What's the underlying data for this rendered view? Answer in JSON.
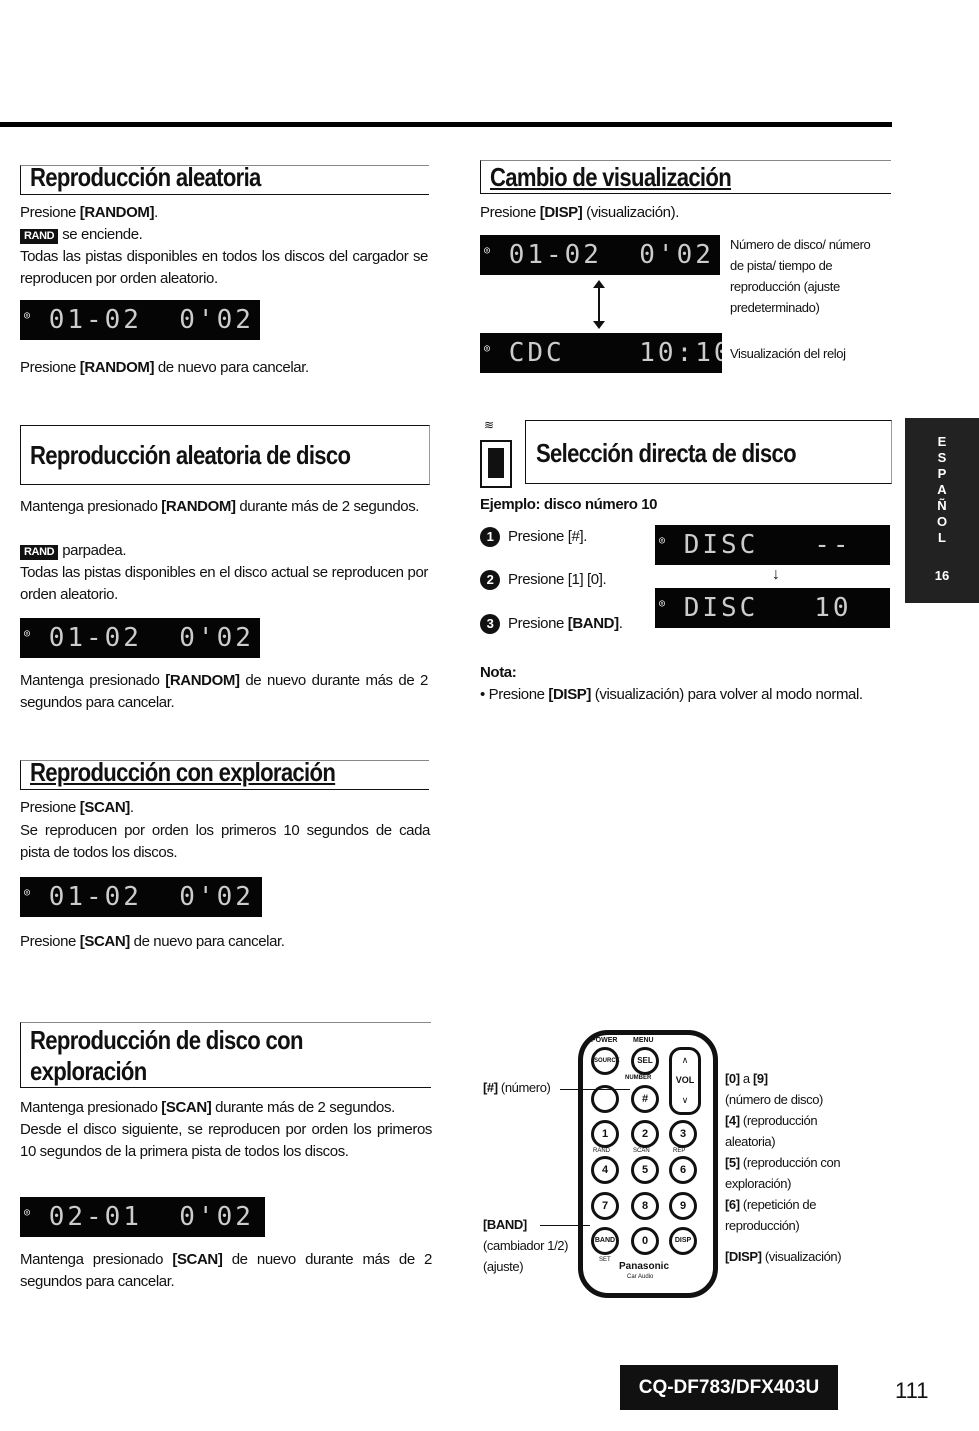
{
  "sections": {
    "random": {
      "title": "Reproducción aleatoria",
      "l1_pre": "Presione ",
      "l1_key": "[RANDOM]",
      "l1_post": ".",
      "badge": "RAND",
      "l2": "se enciende.",
      "l3": "Todas las pistas disponibles en todos los discos del cargador se reproducen por orden aleatorio.",
      "lcd": "01-02  0'02",
      "l4_pre": "Presione ",
      "l4_key": "[RANDOM]",
      "l4_post": " de nuevo para cancelar."
    },
    "random_disc": {
      "title": "Reproducción aleatoria de disco",
      "l1_pre": "Mantenga presionado ",
      "l1_key": "[RANDOM]",
      "l1_post": " durante más de 2 segundos.",
      "badge": "RAND",
      "l2": "parpadea.",
      "l3": "Todas las pistas disponibles en el disco actual se reproducen por orden aleatorio.",
      "lcd": "01-02  0'02",
      "l4_pre": "Mantenga presionado ",
      "l4_key": "[RANDOM]",
      "l4_post": " de nuevo durante más de 2 segundos para cancelar."
    },
    "scan": {
      "title": "Reproducción con exploración",
      "l1_pre": "Presione ",
      "l1_key": "[SCAN]",
      "l1_post": ".",
      "l2": "Se reproducen por orden los primeros 10 segundos de cada pista de todos los discos.",
      "lcd": "01-02  0'02",
      "l3_pre": "Presione ",
      "l3_key": "[SCAN]",
      "l3_post": " de nuevo para cancelar."
    },
    "disc_scan": {
      "title1": "Reproducción de disco con",
      "title2": "exploración",
      "l1_pre": "Mantenga presionado ",
      "l1_key": "[SCAN]",
      "l1_post": " durante más de 2 segundos.",
      "l2": "Desde el disco siguiente, se reproducen por orden los primeros 10 segundos de la primera pista de todos los discos.",
      "lcd": "02-01  0'02",
      "l3_pre": "Mantenga presionado ",
      "l3_key": "[SCAN]",
      "l3_post": " de nuevo durante más de 2 segundos para cancelar."
    },
    "display": {
      "title": "Cambio de visualización",
      "l1_pre": "Presione ",
      "l1_key": "[DISP]",
      "l1_post": " (visualización).",
      "lcd1": "01-02  0'02",
      "lcd2": "CDC    10:10",
      "label1": "Número de disco/ número de pista/ tiempo de reproducción (ajuste predeterminado)",
      "label2": "Visualización del reloj"
    },
    "direct": {
      "title": "Selección directa de disco",
      "example": "Ejemplo: disco número 10",
      "steps": [
        {
          "n": "1",
          "pre": "Presione ",
          "key": "[#]",
          "post": "."
        },
        {
          "n": "2",
          "pre": "Presione ",
          "key": "[1] [0]",
          "post": "."
        },
        {
          "n": "3",
          "pre": "Presione ",
          "key": "[BAND]",
          "post": "."
        }
      ],
      "lcd1": "DISC   --",
      "lcd2": "DISC   10",
      "note_title": "Nota:",
      "note_pre": "Presione ",
      "note_key": "[DISP]",
      "note_post": " (visualización) para volver al modo normal."
    }
  },
  "remote": {
    "label_hash_key": "[#]",
    "label_hash": " (número)",
    "label_band_key": "[BAND]",
    "label_band_1": "(cambiador 1/2)",
    "label_band_2": "(ajuste)",
    "r1_key": "[0]",
    "r1_mid": " a ",
    "r1_key2": "[9]",
    "r2": "(número de disco)",
    "r3_key": "[4]",
    "r3": " (reproducción aleatoria)",
    "r4_key": "[5]",
    "r4": " (reproducción con exploración)",
    "r5_key": "[6]",
    "r5": " (repetición de reproducción)",
    "r6_key": "[DISP]",
    "r6": " (visualización)",
    "buttons": {
      "power": "POWER",
      "menu": "MENU",
      "source": "SOURCE",
      "sel": "SEL",
      "number": "NUMBER",
      "hash": "#",
      "vol": "VOL",
      "rand": "RAND",
      "scan": "SCAN",
      "rep": "REP",
      "band": "BAND",
      "set": "SET",
      "disp": "DISP",
      "digits": [
        "1",
        "2",
        "3",
        "4",
        "5",
        "6",
        "7",
        "8",
        "9",
        "0"
      ],
      "brand": "Panasonic",
      "brand_sub": "Car Audio"
    }
  },
  "side_tab": {
    "letters": [
      "E",
      "S",
      "P",
      "A",
      "Ñ",
      "O",
      "L"
    ],
    "page": "16"
  },
  "footer": {
    "model": "CQ-DF783/DFX403U",
    "page_number": "111"
  }
}
